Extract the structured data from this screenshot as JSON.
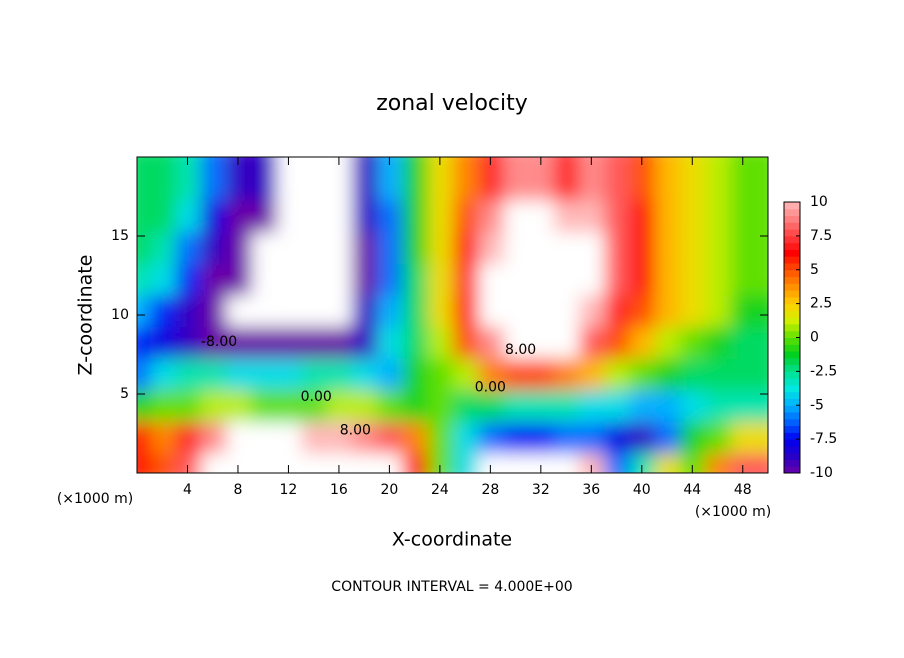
{
  "chart_data": {
    "type": "contour",
    "title": "zonal velocity",
    "xlabel": "X-coordinate",
    "ylabel": "Z-coordinate",
    "axis_unit": "(×1000 m)",
    "note": "CONTOUR INTERVAL = 4.000E+00",
    "xlim": [
      0,
      50
    ],
    "ylim": [
      0,
      20
    ],
    "xticks": [
      4,
      8,
      12,
      16,
      20,
      24,
      28,
      32,
      36,
      40,
      44,
      48
    ],
    "yticks": [
      5,
      10,
      15
    ],
    "x": [
      1,
      3,
      5,
      7,
      9,
      11,
      13,
      15,
      17,
      19,
      21,
      23,
      25,
      27,
      29,
      31,
      33,
      35,
      37,
      39,
      41,
      43,
      45,
      47,
      49
    ],
    "z": [
      1,
      3,
      5,
      7,
      9,
      11,
      13,
      15,
      17,
      19
    ],
    "values": [
      [
        6,
        5,
        8,
        12,
        11,
        12,
        12,
        12,
        12,
        12,
        11,
        6,
        0,
        -4,
        11,
        12,
        12,
        12,
        10,
        -6,
        -3,
        2,
        0,
        4,
        8
      ],
      [
        6,
        4,
        7,
        9,
        11,
        12,
        11,
        10,
        10,
        9,
        8,
        4,
        0,
        -4,
        -6,
        -7,
        -7,
        -6,
        -6,
        -8,
        -9,
        -6,
        -1,
        0,
        2
      ],
      [
        -1,
        0,
        0,
        1,
        1,
        0,
        0,
        0,
        1,
        1,
        0,
        -1,
        0,
        -2,
        -2,
        -3,
        -3,
        -3,
        -4,
        -4,
        -5,
        -5,
        -4,
        -3,
        -3
      ],
      [
        -6,
        -4,
        -3,
        -3,
        -4,
        -4,
        -4,
        -3,
        -3,
        -4,
        -5,
        -1,
        0,
        1,
        4,
        5,
        5,
        4,
        3,
        1,
        0,
        -1,
        -2,
        -2,
        -2
      ],
      [
        -7,
        -8,
        -9,
        -10,
        -10,
        -10,
        -10,
        -10,
        -10,
        -9,
        -4,
        -2,
        1,
        5,
        9,
        11,
        11,
        11,
        8,
        5,
        3,
        1,
        0,
        -1,
        -2
      ],
      [
        -5,
        -7,
        -9,
        -10,
        11,
        12,
        12,
        12,
        12,
        -9,
        -5,
        -2,
        2,
        6,
        11,
        12,
        12,
        12,
        10,
        7,
        5,
        3,
        2,
        1,
        -1
      ],
      [
        -3,
        -4,
        -7,
        -10,
        -10,
        12,
        12,
        12,
        12,
        -10,
        -6,
        -2,
        2,
        7,
        11,
        12,
        12,
        12,
        11,
        8,
        6,
        3,
        2,
        1,
        0
      ],
      [
        -2,
        -3,
        -6,
        -9,
        -10,
        11,
        12,
        12,
        12,
        -10,
        -6,
        -1,
        2,
        6,
        10,
        12,
        12,
        12,
        11,
        8,
        6,
        3,
        2,
        1,
        0
      ],
      [
        -2,
        -2,
        -4,
        -8,
        -10,
        -10,
        12,
        12,
        12,
        -9,
        -6,
        -1,
        2,
        5,
        9,
        11,
        11,
        10,
        10,
        8,
        6,
        3,
        2,
        1,
        0
      ],
      [
        -2,
        -2,
        -3,
        -6,
        -9,
        -9,
        11,
        12,
        12,
        -9,
        -5,
        -1,
        2,
        4,
        7,
        9,
        9,
        7,
        9,
        8,
        5,
        3,
        2,
        1,
        0
      ]
    ],
    "clim": [
      -10,
      10
    ],
    "colormap": [
      "#6a00a8",
      "#2800c8",
      "#0000f0",
      "#0060ff",
      "#00b0ff",
      "#00e8e0",
      "#00e090",
      "#00d020",
      "#60e000",
      "#d0f000",
      "#ffd000",
      "#ff9000",
      "#ff5000",
      "#ff0000",
      "#ff4040",
      "#ff8080",
      "#ffb8b8"
    ],
    "over_color": "#ffffff",
    "cticks": [
      10,
      7.5,
      5,
      2.5,
      0,
      -2.5,
      -5,
      -7.5,
      -10
    ],
    "contour_labels": {
      "values": [
        -8,
        0,
        0,
        8,
        8
      ],
      "value_labels": [
        "-8.00",
        "0.00",
        "0.00",
        "8.00",
        "8.00"
      ]
    }
  }
}
